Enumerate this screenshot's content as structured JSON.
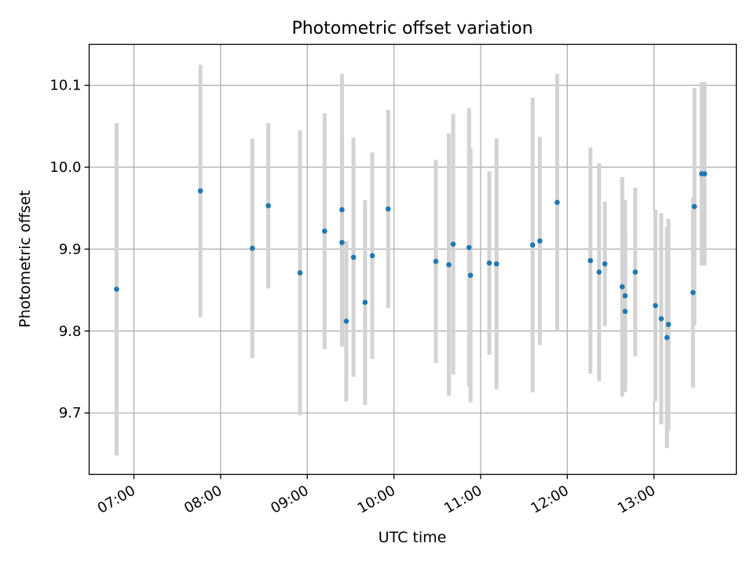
{
  "chart_data": {
    "type": "scatter",
    "title": "Photometric offset variation",
    "xlabel": "UTC time",
    "ylabel": "Photometric offset",
    "x_axis_kind": "time",
    "x_tick_labels": [
      "07:00",
      "08:00",
      "09:00",
      "10:00",
      "11:00",
      "12:00",
      "13:00"
    ],
    "y_tick_labels": [
      "9.7",
      "9.8",
      "9.9",
      "10.0",
      "10.1"
    ],
    "x_ticks": [
      "07:00",
      "08:00",
      "09:00",
      "10:00",
      "11:00",
      "12:00",
      "13:00"
    ],
    "y_ticks": [
      9.7,
      9.8,
      9.9,
      10.0,
      10.1
    ],
    "xlim": [
      "06:29",
      "13:57"
    ],
    "ylim": [
      9.625,
      10.15
    ],
    "grid": true,
    "marker_color": "#1f77b4",
    "errorbar_color": "#d3d3d3",
    "points": [
      {
        "x": "06:48",
        "y": 9.851,
        "err": 0.203
      },
      {
        "x": "07:46",
        "y": 9.971,
        "err": 0.154
      },
      {
        "x": "08:22",
        "y": 9.901,
        "err": 0.134
      },
      {
        "x": "08:33",
        "y": 9.953,
        "err": 0.101
      },
      {
        "x": "08:55",
        "y": 9.871,
        "err": 0.174
      },
      {
        "x": "09:12",
        "y": 9.922,
        "err": 0.144
      },
      {
        "x": "09:24",
        "y": 9.948,
        "err": 0.166
      },
      {
        "x": "09:24",
        "y": 9.908,
        "err": 0.127
      },
      {
        "x": "09:27",
        "y": 9.812,
        "err": 0.098
      },
      {
        "x": "09:32",
        "y": 9.89,
        "err": 0.146
      },
      {
        "x": "09:40",
        "y": 9.835,
        "err": 0.125
      },
      {
        "x": "09:45",
        "y": 9.892,
        "err": 0.126
      },
      {
        "x": "09:56",
        "y": 9.949,
        "err": 0.121
      },
      {
        "x": "10:29",
        "y": 9.885,
        "err": 0.124
      },
      {
        "x": "10:38",
        "y": 9.881,
        "err": 0.16
      },
      {
        "x": "10:41",
        "y": 9.906,
        "err": 0.159
      },
      {
        "x": "10:52",
        "y": 9.902,
        "err": 0.17
      },
      {
        "x": "10:53",
        "y": 9.868,
        "err": 0.155
      },
      {
        "x": "11:06",
        "y": 9.883,
        "err": 0.112
      },
      {
        "x": "11:11",
        "y": 9.882,
        "err": 0.153
      },
      {
        "x": "11:36",
        "y": 9.905,
        "err": 0.18
      },
      {
        "x": "11:41",
        "y": 9.91,
        "err": 0.127
      },
      {
        "x": "11:53",
        "y": 9.957,
        "err": 0.157
      },
      {
        "x": "12:16",
        "y": 9.886,
        "err": 0.138
      },
      {
        "x": "12:22",
        "y": 9.872,
        "err": 0.133
      },
      {
        "x": "12:26",
        "y": 9.882,
        "err": 0.076
      },
      {
        "x": "12:38",
        "y": 9.854,
        "err": 0.134
      },
      {
        "x": "12:40",
        "y": 9.843,
        "err": 0.117
      },
      {
        "x": "12:40",
        "y": 9.824,
        "err": 0.098
      },
      {
        "x": "12:47",
        "y": 9.872,
        "err": 0.103
      },
      {
        "x": "13:01",
        "y": 9.831,
        "err": 0.117
      },
      {
        "x": "13:05",
        "y": 9.815,
        "err": 0.129
      },
      {
        "x": "13:09",
        "y": 9.792,
        "err": 0.135
      },
      {
        "x": "13:10",
        "y": 9.808,
        "err": 0.129
      },
      {
        "x": "13:27",
        "y": 9.847,
        "err": 0.116
      },
      {
        "x": "13:28",
        "y": 9.952,
        "err": 0.145
      },
      {
        "x": "13:33",
        "y": 9.992,
        "err": 0.112
      },
      {
        "x": "13:35",
        "y": 9.992,
        "err": 0.112
      }
    ]
  }
}
